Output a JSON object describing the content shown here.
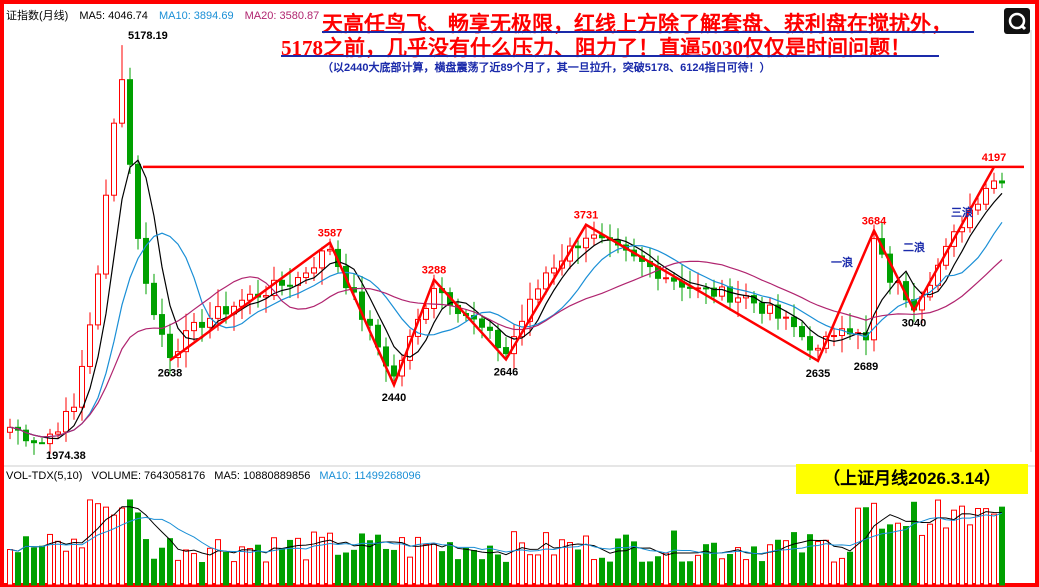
{
  "header": {
    "index_name": "证指数(月线)",
    "ma5_label": "MA5: 4046.74",
    "ma10_label": "MA10: 3894.69",
    "ma20_label": "MA20: 3580.87"
  },
  "annotations": {
    "line1": "天高任鸟飞、畅享无极限，红线上方除了解套盘、获利盘在搅扰外，",
    "line2": "5178之前，几乎没有什么压力、阻力了！直逼5030仅仅是时间问题！",
    "line3": "（以2440大底部计算，横盘震荡了近89个月了，其一旦拉升，突破5178、6124指日可待！）"
  },
  "date_box": "（上证月线2026.3.14）",
  "volume_header": {
    "name": "VOL-TDX(5,10)",
    "volume": "VOLUME: 7643058176",
    "ma5": "MA5: 10880889856",
    "ma10": "MA10: 11499268096"
  },
  "colors": {
    "up": "#ff0000",
    "down": "#00a000",
    "trendline": "#ff0000",
    "resistance": "#ff0000",
    "ma5": "#000000",
    "ma10": "#1a8fd6",
    "ma20": "#b0246f",
    "wave_label": "#1a2aaa"
  },
  "chart_data": {
    "type": "candlestick",
    "title": "上证月线",
    "y_range": [
      1900,
      5300
    ],
    "resistance_level": 4197,
    "price_points": [
      {
        "label": "5178.19",
        "idx": 14,
        "value": 5178.19
      },
      {
        "label": "1974.38",
        "idx": 4,
        "value": 1974.38
      },
      {
        "label": "2638",
        "idx": 20,
        "value": 2638
      },
      {
        "label": "3587",
        "idx": 40,
        "value": 3587
      },
      {
        "label": "2440",
        "idx": 48,
        "value": 2440
      },
      {
        "label": "3288",
        "idx": 53,
        "value": 3288
      },
      {
        "label": "2646",
        "idx": 62,
        "value": 2646
      },
      {
        "label": "3731",
        "idx": 72,
        "value": 3731
      },
      {
        "label": "2635",
        "idx": 101,
        "value": 2635
      },
      {
        "label": "2689",
        "idx": 107,
        "value": 2689
      },
      {
        "label": "3684",
        "idx": 108,
        "value": 3684
      },
      {
        "label": "3040",
        "idx": 113,
        "value": 3040
      },
      {
        "label": "4197",
        "idx": 123,
        "value": 4197
      }
    ],
    "wave_labels": [
      "一浪",
      "二浪",
      "三浪"
    ],
    "zigzag_idx": [
      20,
      40,
      48,
      53,
      62,
      72,
      101,
      108,
      113,
      123
    ]
  }
}
